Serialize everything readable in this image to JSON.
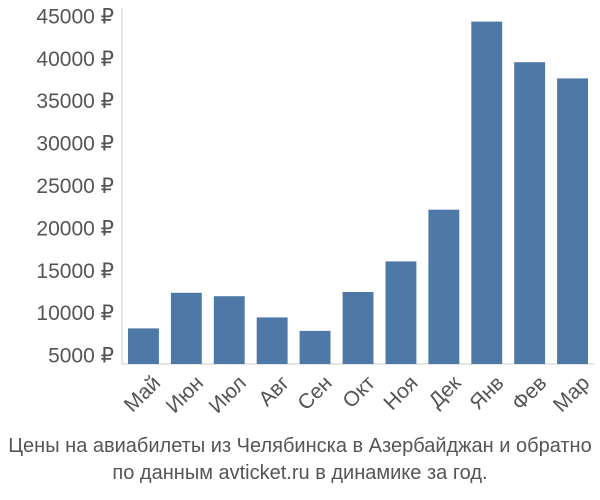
{
  "chart_data": {
    "type": "bar",
    "categories": [
      "Май",
      "Июн",
      "Июл",
      "Авг",
      "Сен",
      "Окт",
      "Ноя",
      "Дек",
      "Янв",
      "Фев",
      "Мар"
    ],
    "values": [
      8200,
      12400,
      12000,
      9500,
      7900,
      12500,
      16100,
      22200,
      44400,
      39600,
      37700
    ],
    "ylim": [
      4000,
      46000
    ],
    "yticks": [
      5000,
      10000,
      15000,
      20000,
      25000,
      30000,
      35000,
      40000,
      45000
    ],
    "ytick_labels": [
      "5000 ₽",
      "10000 ₽",
      "15000 ₽",
      "20000 ₽",
      "25000 ₽",
      "30000 ₽",
      "35000 ₽",
      "40000 ₽",
      "45000 ₽"
    ],
    "bar_color": "#4e79a7",
    "grid": false,
    "legend": "none"
  },
  "caption": {
    "line1": "Цены на авиабилеты из Челябинска в Азербайджан и обратно",
    "line2": "по данным avticket.ru в динамике за год."
  }
}
